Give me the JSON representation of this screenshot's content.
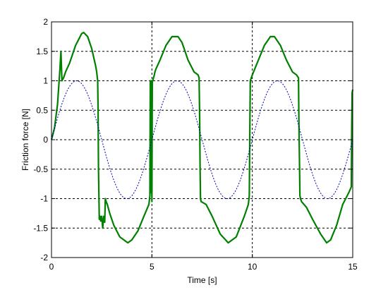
{
  "chart_data": {
    "type": "line",
    "title": "",
    "xlabel": "Time [s]",
    "ylabel": "Friction force [N]",
    "xlim": [
      0,
      15
    ],
    "ylim": [
      -2,
      2
    ],
    "xticks": [
      0,
      5,
      10,
      15
    ],
    "yticks": [
      -2,
      -1.5,
      -1,
      -0.5,
      0,
      0.5,
      1,
      1.5,
      2
    ],
    "xtick_labels": [
      "0",
      "5",
      "10",
      "15"
    ],
    "ytick_labels": [
      "-2",
      "-1.5",
      "-1",
      "-0.5",
      "0",
      "0.5",
      "1",
      "1.5",
      "2"
    ],
    "grid": true,
    "series": [
      {
        "style": "solid",
        "color": "#008000",
        "x": [
          0,
          0.15,
          0.3,
          0.42,
          0.47,
          0.52,
          0.6,
          0.7,
          0.9,
          1.2,
          1.5,
          1.6,
          1.8,
          2.0,
          2.2,
          2.25,
          2.3,
          2.32,
          2.34,
          2.38,
          2.42,
          2.45,
          2.5,
          2.55,
          2.6,
          2.65,
          2.68,
          2.72,
          2.78,
          2.9,
          3.1,
          3.4,
          3.8,
          4.0,
          4.3,
          4.6,
          4.85,
          4.9,
          4.92,
          4.94,
          4.96,
          5.0,
          5.02,
          5.05,
          5.08,
          5.12,
          5.15,
          5.2,
          5.4,
          5.7,
          6.0,
          6.3,
          6.5,
          6.8,
          7.1,
          7.3,
          7.35,
          7.38,
          7.4,
          7.42,
          7.45,
          7.7,
          8.0,
          8.4,
          8.8,
          9.2,
          9.6,
          9.8,
          9.85,
          9.88,
          9.9,
          9.95,
          10.0,
          10.3,
          10.6,
          10.9,
          11.1,
          11.4,
          11.7,
          12.0,
          12.2,
          12.3,
          12.32,
          12.35,
          12.37,
          12.4,
          12.45,
          12.7,
          13.0,
          13.4,
          13.7,
          13.9,
          14.2,
          14.5,
          14.8,
          14.93,
          14.95,
          14.97,
          15.0
        ],
        "y": [
          0,
          0.2,
          0.6,
          1.2,
          1.5,
          1.0,
          1.05,
          1.15,
          1.3,
          1.6,
          1.8,
          1.82,
          1.75,
          1.55,
          1.25,
          1.15,
          1.0,
          0.5,
          -0.5,
          -1.35,
          -1.3,
          -1.38,
          -1.3,
          -1.5,
          -1.3,
          -1.4,
          -1.0,
          -1.05,
          -1.1,
          -1.25,
          -1.45,
          -1.65,
          -1.75,
          -1.7,
          -1.55,
          -1.3,
          -1.1,
          -0.95,
          1.0,
          -0.9,
          1.0,
          -1.05,
          1.0,
          1.0,
          1.05,
          1.1,
          1.15,
          1.2,
          1.35,
          1.6,
          1.75,
          1.75,
          1.65,
          1.35,
          1.15,
          1.1,
          1.05,
          0.3,
          -0.5,
          -1.0,
          -1.05,
          -1.1,
          -1.3,
          -1.6,
          -1.75,
          -1.65,
          -1.3,
          -1.1,
          -0.95,
          0.3,
          1.0,
          1.05,
          1.1,
          1.35,
          1.6,
          1.75,
          1.75,
          1.6,
          1.35,
          1.15,
          1.1,
          1.05,
          0.3,
          -0.4,
          -0.95,
          -1.0,
          -1.05,
          -1.15,
          -1.35,
          -1.6,
          -1.75,
          -1.7,
          -1.45,
          -1.1,
          -0.9,
          -0.8,
          0.2,
          0.8,
          0.85
        ]
      },
      {
        "style": "dotted",
        "color": "#0000c0",
        "function": "sin(2*pi*t/5)",
        "x_start": 0,
        "x_end": 15,
        "step": 0.05
      }
    ]
  }
}
